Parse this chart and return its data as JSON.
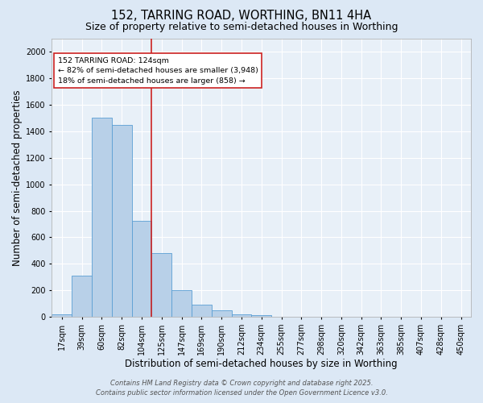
{
  "title1": "152, TARRING ROAD, WORTHING, BN11 4HA",
  "title2": "Size of property relative to semi-detached houses in Worthing",
  "xlabel": "Distribution of semi-detached houses by size in Worthing",
  "ylabel": "Number of semi-detached properties",
  "categories": [
    "17sqm",
    "39sqm",
    "60sqm",
    "82sqm",
    "104sqm",
    "125sqm",
    "147sqm",
    "169sqm",
    "190sqm",
    "212sqm",
    "234sqm",
    "255sqm",
    "277sqm",
    "298sqm",
    "320sqm",
    "342sqm",
    "363sqm",
    "385sqm",
    "407sqm",
    "428sqm",
    "450sqm"
  ],
  "values": [
    18,
    310,
    1500,
    1450,
    725,
    480,
    200,
    90,
    50,
    18,
    12,
    0,
    0,
    0,
    0,
    0,
    0,
    0,
    0,
    0,
    0
  ],
  "bar_color": "#b8d0e8",
  "bar_edge_color": "#5a9fd4",
  "vline_x": 5,
  "vline_color": "#cc2222",
  "annotation_text": "152 TARRING ROAD: 124sqm\n← 82% of semi-detached houses are smaller (3,948)\n18% of semi-detached houses are larger (858) →",
  "annotation_box_color": "#ffffff",
  "annotation_box_edge": "#cc2222",
  "ylim": [
    0,
    2100
  ],
  "yticks": [
    0,
    200,
    400,
    600,
    800,
    1000,
    1200,
    1400,
    1600,
    1800,
    2000
  ],
  "footer": "Contains HM Land Registry data © Crown copyright and database right 2025.\nContains public sector information licensed under the Open Government Licence v3.0.",
  "bg_color": "#dce8f5",
  "plot_bg_color": "#e8f0f8",
  "grid_color": "#ffffff",
  "title1_fontsize": 10.5,
  "title2_fontsize": 9,
  "tick_fontsize": 7,
  "label_fontsize": 8.5,
  "footer_fontsize": 6
}
